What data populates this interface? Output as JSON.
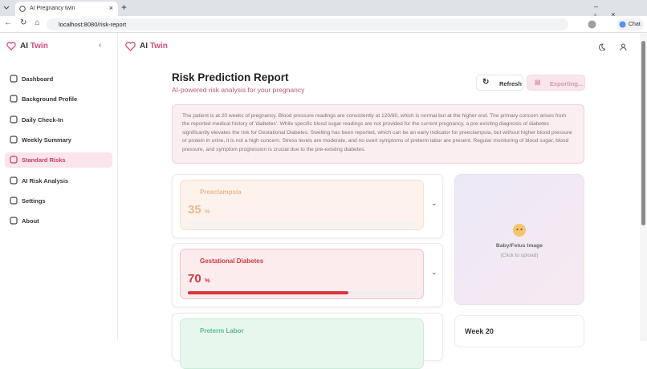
{
  "browser": {
    "tab_title": "AI Pregnancy twin",
    "url": "localhost:8080/risk-report",
    "chat": "Chat"
  },
  "sidebar": {
    "logo": {
      "ai": "AI",
      "twin": "Twin"
    },
    "active_index": 4,
    "nav": [
      "Dashboard",
      "Background Profile",
      "Daily Check-In",
      "Weekly Summary",
      "Standard Risks",
      "AI Risk Analysis",
      "Settings",
      "About"
    ]
  },
  "header": {
    "ai": "AI",
    "twin": "Twin"
  },
  "report": {
    "title": "Risk Prediction Report",
    "subtitle": "AI-powered risk analysis for your pregnancy",
    "buttons": {
      "refresh": "Refresh",
      "exporting": "Exporting..."
    },
    "summary": "The patient is at 20 weeks of pregnancy. Blood pressure readings are consistently at 120/80, which is normal but at the higher end. The primary concern arises from the reported medical history of 'diabetes'. While specific blood sugar readings are not provided for the current pregnancy, a pre-existing diagnosis of diabetes significantly elevates the risk for Gestational Diabetes. Swelling has been reported, which can be an early indicator for preeclampsia, but without higher blood pressure or protein in urine, it is not a high concern. Stress levels are moderate, and no overt symptoms of preterm labor are present. Regular monitoring of blood sugar, blood pressure, and symptom progression is crucial due to the pre-existing diabetes."
  },
  "risks": [
    {
      "name": "Preeclampsia",
      "value": 35,
      "unit": "%",
      "color": "#e8a06a"
    },
    {
      "name": "Gestational Diabetes",
      "value": 70,
      "unit": "%",
      "color": "#d9363e"
    },
    {
      "name": "Preterm Labor",
      "color": "#5cc08a"
    }
  ],
  "baby": {
    "label": "Baby/Fetus Image",
    "hint": "(Click to upload)"
  },
  "week": "Week 20"
}
